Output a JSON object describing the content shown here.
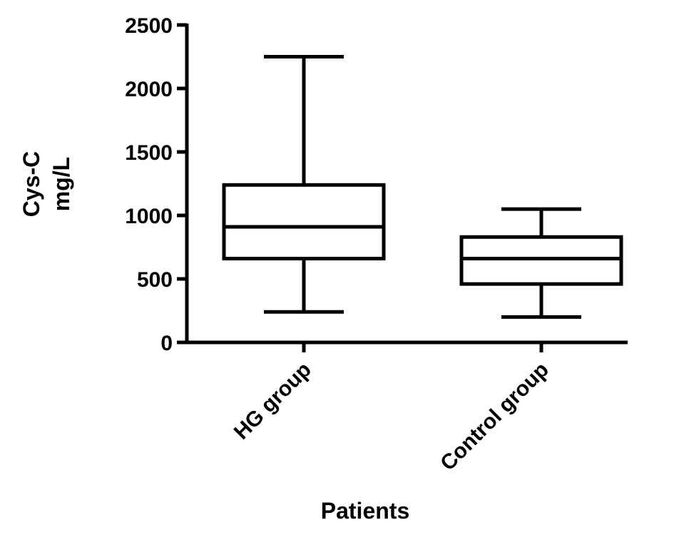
{
  "chart_data": {
    "type": "box",
    "ylabel_lines": [
      "Cys-C",
      "mg/L"
    ],
    "xlabel": "Patients",
    "ylim": [
      0,
      2500
    ],
    "yticks": [
      0,
      500,
      1000,
      1500,
      2000,
      2500
    ],
    "ytick_labels": [
      "0",
      "500",
      "1000",
      "1500",
      "2000",
      "2500"
    ],
    "categories": [
      "HG group",
      "Control group"
    ],
    "boxes": [
      {
        "name": "HG group",
        "min": 240,
        "q1": 660,
        "median": 910,
        "q3": 1240,
        "max": 2250
      },
      {
        "name": "Control group",
        "min": 200,
        "q1": 460,
        "median": 660,
        "q3": 830,
        "max": 1050
      }
    ],
    "colors": {
      "stroke": "#000000",
      "fill": "#ffffff"
    }
  }
}
